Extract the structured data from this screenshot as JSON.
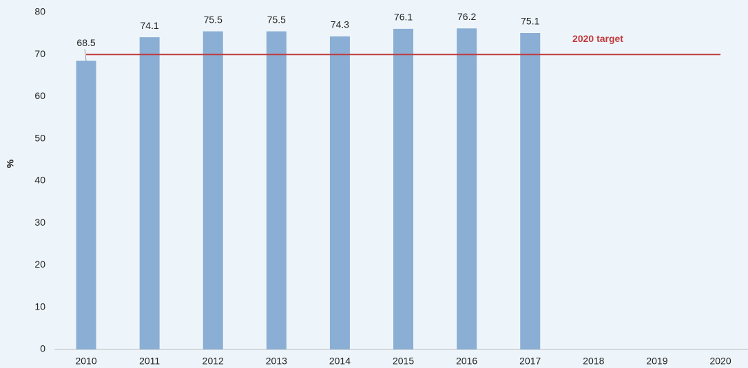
{
  "chart_data": {
    "type": "bar",
    "ylabel": "%",
    "categories": [
      "2010",
      "2011",
      "2012",
      "2013",
      "2014",
      "2015",
      "2016",
      "2017",
      "2018",
      "2019",
      "2020"
    ],
    "values": [
      68.5,
      74.1,
      75.5,
      75.5,
      74.3,
      76.1,
      76.2,
      75.1,
      null,
      null,
      null
    ],
    "color": "#8aaed4",
    "ylim": [
      0,
      80
    ],
    "yticks": [
      0,
      10,
      20,
      30,
      40,
      50,
      60,
      70,
      80
    ],
    "grid": false,
    "target": {
      "value": 70,
      "label": "2020 target",
      "color": "#c0393b"
    }
  }
}
